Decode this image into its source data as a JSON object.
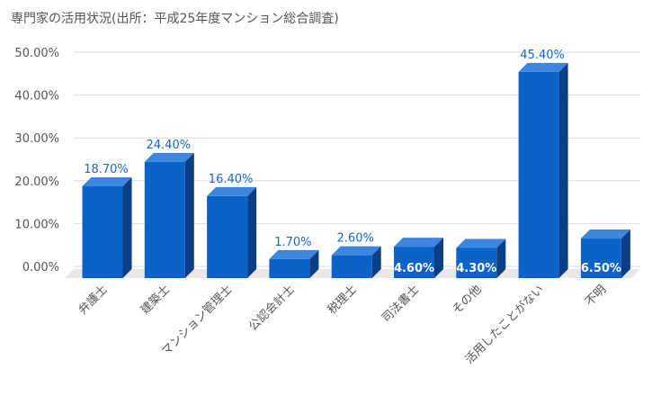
{
  "chart_data": {
    "type": "bar",
    "title": "専門家の活用状況(出所：平成25年度マンション総合調査)",
    "categories": [
      "弁護士",
      "建築士",
      "マンション管理士",
      "公認会計士",
      "税理士",
      "司法書士",
      "その他",
      "活用したことがない",
      "不明"
    ],
    "values": [
      18.7,
      24.4,
      16.4,
      1.7,
      2.6,
      4.6,
      4.3,
      45.4,
      6.5
    ],
    "value_labels": [
      "18.70%",
      "24.40%",
      "16.40%",
      "1.70%",
      "2.60%",
      "4.60%",
      "4.30%",
      "45.40%",
      "6.50%"
    ],
    "label_inside": [
      false,
      false,
      false,
      false,
      false,
      true,
      true,
      false,
      true
    ],
    "y_ticks": [
      0,
      10,
      20,
      30,
      40,
      50
    ],
    "y_tick_labels": [
      "0.00%",
      "10.00%",
      "20.00%",
      "30.00%",
      "40.00%",
      "50.00%"
    ],
    "ylim": [
      0,
      50
    ],
    "xlabel": "",
    "ylabel": "",
    "grid": true,
    "style": "3d",
    "colors": {
      "bar_front": "#0b63c9",
      "bar_top": "#3d86e0",
      "bar_side": "#0a3f86",
      "grid": "#dddddd",
      "floor": "#e8e8e8",
      "label_out": "#1a66cc"
    }
  }
}
